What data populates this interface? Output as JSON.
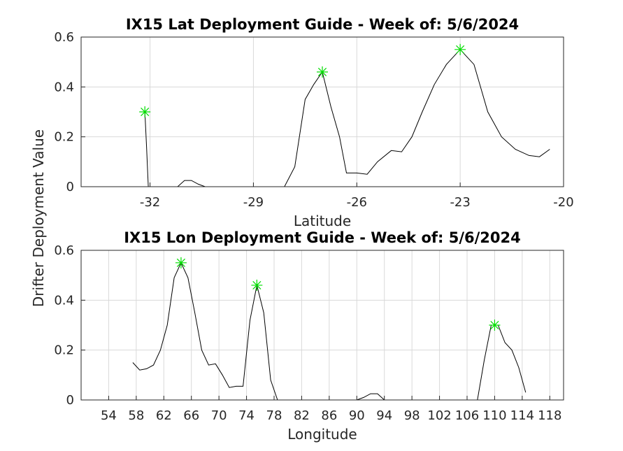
{
  "figure": {
    "ylabel": "Drifter Deployment Value"
  },
  "chart_data": [
    {
      "type": "line",
      "title": "IX15 Lat Deployment Guide - Week of: 5/6/2024",
      "xlabel": "Latitude",
      "ylabel": "Drifter Deployment Value",
      "xlim": [
        -34,
        -20
      ],
      "ylim": [
        0,
        0.6
      ],
      "xticks": [
        -32,
        -29,
        -26,
        -23,
        -20
      ],
      "yticks": [
        0,
        0.2,
        0.4,
        0.6
      ],
      "ytick_labels": [
        "0",
        "0.2",
        "0.4",
        "0.6"
      ],
      "grid": true,
      "colors": {
        "line": "#000000",
        "peak_marker": "#00dd00"
      },
      "series": [
        {
          "x": [
            -32.15,
            -32.1,
            -32.05,
            -31.2,
            -31.0,
            -30.8,
            -30.6,
            -30.4,
            -30.2,
            -28.1,
            -27.8,
            -27.5,
            -27.25,
            -27.0,
            -26.75,
            -26.5,
            -26.3,
            -26.0,
            -25.7,
            -25.4,
            -25.0,
            -24.7,
            -24.4,
            -24.1,
            -23.75,
            -23.4,
            -23.0,
            -22.6,
            -22.2,
            -21.8,
            -21.4,
            -21.0,
            -20.7,
            -20.4
          ],
          "y": [
            0.3,
            0.16,
            0.0,
            0.0,
            0.025,
            0.025,
            0.01,
            0.0,
            0.0,
            0.0,
            0.08,
            0.35,
            0.41,
            0.46,
            0.32,
            0.2,
            0.055,
            0.055,
            0.05,
            0.1,
            0.145,
            0.14,
            0.2,
            0.3,
            0.41,
            0.49,
            0.55,
            0.49,
            0.3,
            0.2,
            0.15,
            0.125,
            0.12,
            0.15
          ]
        }
      ],
      "peaks": {
        "x": [
          -32.15,
          -27.0,
          -23.0
        ],
        "y": [
          0.3,
          0.46,
          0.55
        ]
      }
    },
    {
      "type": "line",
      "title": "IX15 Lon Deployment Guide - Week of: 5/6/2024",
      "xlabel": "Longitude",
      "ylabel": "Drifter Deployment Value",
      "xlim": [
        50,
        120
      ],
      "ylim": [
        0,
        0.6
      ],
      "xticks": [
        54,
        58,
        62,
        66,
        70,
        74,
        78,
        82,
        86,
        90,
        94,
        98,
        102,
        106,
        110,
        114,
        118
      ],
      "yticks": [
        0,
        0.2,
        0.4,
        0.6
      ],
      "ytick_labels": [
        "0",
        "0.2",
        "0.4",
        "0.6"
      ],
      "grid": true,
      "colors": {
        "line": "#000000",
        "peak_marker": "#00dd00"
      },
      "series": [
        {
          "x": [
            57.5,
            58.5,
            59.5,
            60.5,
            61.5,
            62.5,
            63.5,
            64.5,
            65.5,
            66.5,
            67.5,
            68.5,
            69.5,
            70.5,
            71.5,
            72.5,
            73.5,
            74.5,
            75.5,
            76.5,
            77.5,
            78.5,
            90.0,
            91.0,
            92.0,
            93.0,
            94.0,
            107.5,
            108.5,
            109.5,
            110.5,
            111.5,
            112.5,
            113.5,
            114.5
          ],
          "y": [
            0.15,
            0.12,
            0.125,
            0.14,
            0.2,
            0.3,
            0.49,
            0.55,
            0.49,
            0.35,
            0.2,
            0.14,
            0.145,
            0.1,
            0.05,
            0.055,
            0.055,
            0.32,
            0.46,
            0.35,
            0.08,
            0.0,
            0.0,
            0.01,
            0.025,
            0.025,
            0.0,
            0.0,
            0.16,
            0.3,
            0.3,
            0.23,
            0.2,
            0.13,
            0.03
          ]
        }
      ],
      "peaks": {
        "x": [
          64.5,
          75.5,
          110.0
        ],
        "y": [
          0.55,
          0.46,
          0.3
        ]
      }
    }
  ]
}
